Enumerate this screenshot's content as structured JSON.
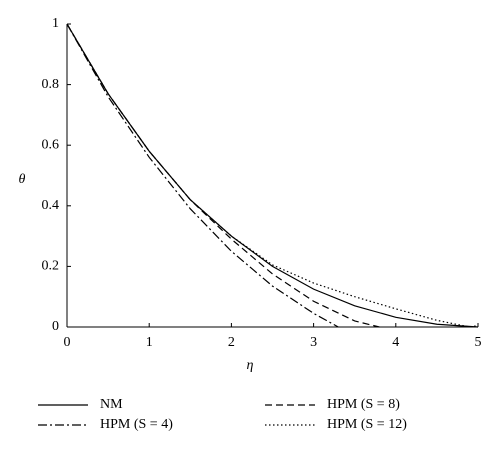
{
  "chart_data": {
    "type": "line",
    "xlabel": "η",
    "ylabel": "θ",
    "xlim": [
      0,
      5
    ],
    "ylim": [
      0,
      1
    ],
    "xticks": [
      0,
      1,
      2,
      3,
      4,
      5
    ],
    "yticks": [
      0,
      0.2,
      0.4,
      0.6,
      0.8,
      1
    ],
    "series": [
      {
        "name": "NM",
        "color": "#000000",
        "line_style": "solid",
        "x": [
          0,
          0.5,
          1,
          1.5,
          2,
          2.5,
          3,
          3.5,
          4,
          4.5,
          5
        ],
        "values": [
          1,
          0.77,
          0.58,
          0.42,
          0.3,
          0.2,
          0.125,
          0.07,
          0.032,
          0.009,
          0
        ]
      },
      {
        "name": "HPM (S = 4)",
        "color": "#000000",
        "line_style": "dashdot",
        "x": [
          0,
          0.5,
          1,
          1.5,
          2,
          2.5,
          3,
          3.3
        ],
        "values": [
          1,
          0.76,
          0.56,
          0.39,
          0.25,
          0.135,
          0.045,
          0
        ]
      },
      {
        "name": "HPM (S = 8)",
        "color": "#000000",
        "line_style": "dashed",
        "x": [
          0,
          0.5,
          1,
          1.5,
          2,
          2.5,
          3,
          3.5,
          3.8
        ],
        "values": [
          1,
          0.77,
          0.58,
          0.42,
          0.29,
          0.175,
          0.085,
          0.02,
          0
        ]
      },
      {
        "name": "HPM (S = 12)",
        "color": "#000000",
        "line_style": "dotted",
        "x": [
          0,
          0.5,
          1,
          1.5,
          2,
          2.5,
          3,
          3.5,
          4,
          4.5,
          4.9,
          5
        ],
        "values": [
          1,
          0.77,
          0.58,
          0.42,
          0.3,
          0.205,
          0.145,
          0.1,
          0.06,
          0.022,
          0.0,
          0.005
        ]
      }
    ]
  }
}
